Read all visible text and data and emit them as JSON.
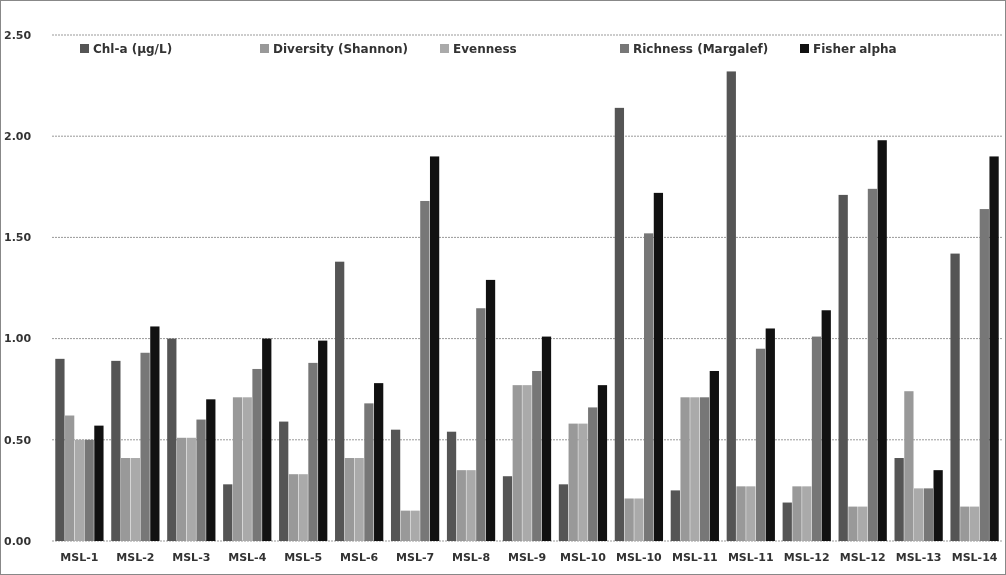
{
  "chart_data": {
    "type": "bar",
    "categories": [
      "MSL-1",
      "MSL-2",
      "MSL-3",
      "MSL-4",
      "MSL-5",
      "MSL-6",
      "MSL-7",
      "MSL-8",
      "MSL-9",
      "MSL-10",
      "MSL-10",
      "MSL-11",
      "MSL-11",
      "MSL-12",
      "MSL-12",
      "MSL-13",
      "MSL-14"
    ],
    "series": [
      {
        "name": "Chl-a (µg/L)",
        "color": "#555555",
        "values": [
          0.9,
          0.89,
          1.0,
          0.28,
          0.59,
          1.38,
          0.55,
          0.54,
          0.32,
          0.28,
          2.14,
          0.25,
          2.32,
          0.19,
          1.71,
          0.41,
          1.42
        ]
      },
      {
        "name": "Diversity (Shannon)",
        "color": "#999999",
        "values": [
          0.62,
          0.41,
          0.51,
          0.71,
          0.33,
          0.41,
          0.15,
          0.35,
          0.77,
          0.58,
          0.21,
          0.71,
          0.27,
          0.27,
          0.17,
          0.74,
          0.17
        ]
      },
      {
        "name": "Evenness",
        "color": "#aaaaaa",
        "values": [
          0.5,
          0.41,
          0.51,
          0.71,
          0.33,
          0.41,
          0.15,
          0.35,
          0.77,
          0.58,
          0.21,
          0.71,
          0.27,
          0.27,
          0.17,
          0.26,
          0.17
        ]
      },
      {
        "name": "Richness (Margalef)",
        "color": "#777777",
        "values": [
          0.5,
          0.93,
          0.6,
          0.85,
          0.88,
          0.68,
          1.68,
          1.15,
          0.84,
          0.66,
          1.52,
          0.71,
          0.95,
          1.01,
          1.74,
          0.26,
          1.64
        ]
      },
      {
        "name": "Fisher alpha",
        "color": "#111111",
        "values": [
          0.57,
          1.06,
          0.7,
          1.0,
          0.99,
          0.78,
          1.9,
          1.29,
          1.01,
          0.77,
          1.72,
          0.84,
          1.05,
          1.14,
          1.98,
          0.35,
          1.9
        ]
      }
    ],
    "ylim": [
      0,
      2.5
    ],
    "yticks": [
      {
        "value": 0,
        "label": "0.00"
      },
      {
        "value": 0.5,
        "label": "0.50"
      },
      {
        "value": 1,
        "label": "1.00"
      },
      {
        "value": 1.5,
        "label": "1.50"
      },
      {
        "value": 2,
        "label": "2.00"
      },
      {
        "value": 2.5,
        "label": "2.50"
      }
    ],
    "grid": "y",
    "legend": "top"
  }
}
